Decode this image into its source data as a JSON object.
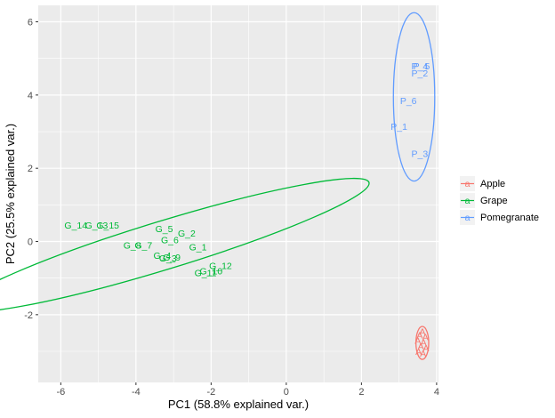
{
  "chart_data": {
    "type": "scatter",
    "title": "",
    "xlabel": "PC1 (58.8% explained var.)",
    "ylabel": "PC2 (25.5% explained var.)",
    "xlim": [
      -6.6,
      4.05
    ],
    "ylim": [
      -3.85,
      6.45
    ],
    "xticks": [
      -6,
      -4,
      -2,
      0,
      2,
      4
    ],
    "yticks": [
      -2,
      0,
      2,
      4,
      6
    ],
    "grid": true,
    "legend_position": "right",
    "series": [
      {
        "name": "Apple",
        "color": "#F8766D",
        "points": [
          {
            "label": "A",
            "x": 3.62,
            "y": -2.45
          },
          {
            "label": "A",
            "x": 3.55,
            "y": -2.55
          },
          {
            "label": "A",
            "x": 3.7,
            "y": -2.6
          },
          {
            "label": "A",
            "x": 3.5,
            "y": -2.7
          },
          {
            "label": "A",
            "x": 3.65,
            "y": -2.75
          },
          {
            "label": "A",
            "x": 3.58,
            "y": -2.85
          },
          {
            "label": "A",
            "x": 3.72,
            "y": -2.9
          },
          {
            "label": "A",
            "x": 3.52,
            "y": -3.0
          },
          {
            "label": "A",
            "x": 3.64,
            "y": -3.05
          }
        ],
        "ellipse": {
          "cx": 3.62,
          "cy": -2.77,
          "rx": 0.17,
          "ry": 0.45,
          "angle": 0
        }
      },
      {
        "name": "Grape",
        "color": "#00BA38",
        "points": [
          {
            "label": "G_14",
            "x": -5.6,
            "y": 0.45
          },
          {
            "label": "G_13",
            "x": -5.05,
            "y": 0.45
          },
          {
            "label": "G_15",
            "x": -4.75,
            "y": 0.45
          },
          {
            "label": "G_5",
            "x": -3.25,
            "y": 0.35
          },
          {
            "label": "G_2",
            "x": -2.65,
            "y": 0.23
          },
          {
            "label": "G_6",
            "x": -3.1,
            "y": 0.05
          },
          {
            "label": "G_8",
            "x": -4.1,
            "y": -0.1
          },
          {
            "label": "G_7",
            "x": -3.8,
            "y": -0.1
          },
          {
            "label": "G_1",
            "x": -2.35,
            "y": -0.15
          },
          {
            "label": "G_4",
            "x": -3.3,
            "y": -0.38
          },
          {
            "label": "G_9",
            "x": -3.05,
            "y": -0.42
          },
          {
            "label": "G_3",
            "x": -3.15,
            "y": -0.45
          },
          {
            "label": "G_12",
            "x": -1.75,
            "y": -0.65
          },
          {
            "label": "G_10",
            "x": -2.0,
            "y": -0.8
          },
          {
            "label": "G_11",
            "x": -2.15,
            "y": -0.85
          }
        ],
        "ellipse": {
          "cx": -3.25,
          "cy": -0.1,
          "rx": 5.7,
          "ry": 0.66,
          "angle": -17
        }
      },
      {
        "name": "Pomegranate",
        "color": "#619CFF",
        "points": [
          {
            "label": "P_4",
            "x": 3.55,
            "y": 4.8
          },
          {
            "label": "P_5",
            "x": 3.6,
            "y": 4.8
          },
          {
            "label": "P_2",
            "x": 3.55,
            "y": 4.6
          },
          {
            "label": "P_6",
            "x": 3.25,
            "y": 3.85
          },
          {
            "label": "P_1",
            "x": 3.0,
            "y": 3.15
          },
          {
            "label": "P_3",
            "x": 3.55,
            "y": 2.4
          }
        ],
        "ellipse": {
          "cx": 3.4,
          "cy": 3.95,
          "rx": 0.55,
          "ry": 2.3,
          "angle": 0
        }
      }
    ]
  }
}
